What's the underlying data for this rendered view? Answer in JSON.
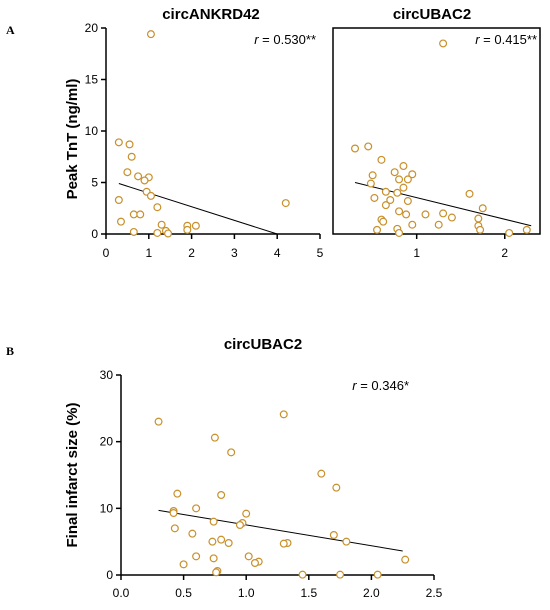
{
  "panels": {
    "a_label": "A",
    "b_label": "B"
  },
  "colors": {
    "marker_edge": "#c8902c",
    "marker_fill": "#ffffff",
    "axis": "#000000",
    "regression_line": "#000000"
  },
  "chart_data": [
    {
      "type": "scatter",
      "panel": "A",
      "title": "circANKRD42",
      "ylabel": "Peak TnT (ng/ml)",
      "xlabel": "",
      "xlim": [
        0,
        5
      ],
      "ylim": [
        0,
        20
      ],
      "xticks": [
        "0",
        "1",
        "2",
        "3",
        "4",
        "5"
      ],
      "yticks": [
        "0",
        "5",
        "10",
        "15",
        "20"
      ],
      "r_label": "r",
      "r_value": " = 0.530**",
      "regression": {
        "x": [
          0.3,
          4.0
        ],
        "y": [
          4.9,
          0.0
        ]
      },
      "points": [
        {
          "x": 1.05,
          "y": 19.4
        },
        {
          "x": 0.3,
          "y": 8.9
        },
        {
          "x": 0.55,
          "y": 8.7
        },
        {
          "x": 0.6,
          "y": 7.5
        },
        {
          "x": 0.5,
          "y": 6.0
        },
        {
          "x": 0.75,
          "y": 5.6
        },
        {
          "x": 1.0,
          "y": 5.5
        },
        {
          "x": 0.9,
          "y": 5.2
        },
        {
          "x": 0.3,
          "y": 3.3
        },
        {
          "x": 0.95,
          "y": 4.1
        },
        {
          "x": 1.05,
          "y": 3.7
        },
        {
          "x": 1.2,
          "y": 2.6
        },
        {
          "x": 0.65,
          "y": 1.9
        },
        {
          "x": 0.8,
          "y": 1.9
        },
        {
          "x": 0.35,
          "y": 1.2
        },
        {
          "x": 1.3,
          "y": 0.9
        },
        {
          "x": 1.9,
          "y": 0.8
        },
        {
          "x": 2.1,
          "y": 0.8
        },
        {
          "x": 1.4,
          "y": 0.3
        },
        {
          "x": 0.65,
          "y": 0.2
        },
        {
          "x": 1.9,
          "y": 0.4
        },
        {
          "x": 1.2,
          "y": 0.1
        },
        {
          "x": 1.45,
          "y": 0.05
        },
        {
          "x": 4.2,
          "y": 3.0
        }
      ]
    },
    {
      "type": "scatter",
      "panel": "A",
      "title": "circUBAC2",
      "xlabel": "",
      "ylabel": "",
      "xlim": [
        0.05,
        2.4
      ],
      "ylim": [
        0,
        20
      ],
      "xticks": [
        "1",
        "2"
      ],
      "xtick_values": [
        1,
        2
      ],
      "r_label": "r",
      "r_value": " = 0.415**",
      "regression": {
        "x": [
          0.3,
          2.3
        ],
        "y": [
          5.0,
          0.8
        ]
      },
      "points": [
        {
          "x": 1.3,
          "y": 18.5
        },
        {
          "x": 0.3,
          "y": 8.3
        },
        {
          "x": 0.45,
          "y": 8.5
        },
        {
          "x": 0.6,
          "y": 7.2
        },
        {
          "x": 0.85,
          "y": 6.6
        },
        {
          "x": 0.75,
          "y": 6.0
        },
        {
          "x": 0.95,
          "y": 5.8
        },
        {
          "x": 0.5,
          "y": 5.7
        },
        {
          "x": 0.8,
          "y": 5.3
        },
        {
          "x": 0.9,
          "y": 5.3
        },
        {
          "x": 0.48,
          "y": 4.9
        },
        {
          "x": 0.65,
          "y": 4.1
        },
        {
          "x": 0.78,
          "y": 4.0
        },
        {
          "x": 0.85,
          "y": 4.5
        },
        {
          "x": 1.6,
          "y": 3.9
        },
        {
          "x": 0.52,
          "y": 3.5
        },
        {
          "x": 0.7,
          "y": 3.3
        },
        {
          "x": 0.9,
          "y": 3.2
        },
        {
          "x": 0.65,
          "y": 2.8
        },
        {
          "x": 1.75,
          "y": 2.5
        },
        {
          "x": 0.8,
          "y": 2.2
        },
        {
          "x": 0.88,
          "y": 1.9
        },
        {
          "x": 1.1,
          "y": 1.9
        },
        {
          "x": 1.3,
          "y": 2.0
        },
        {
          "x": 1.4,
          "y": 1.6
        },
        {
          "x": 1.7,
          "y": 1.5
        },
        {
          "x": 0.6,
          "y": 1.4
        },
        {
          "x": 0.62,
          "y": 1.2
        },
        {
          "x": 0.95,
          "y": 0.9
        },
        {
          "x": 1.25,
          "y": 0.9
        },
        {
          "x": 1.7,
          "y": 0.8
        },
        {
          "x": 0.55,
          "y": 0.4
        },
        {
          "x": 0.78,
          "y": 0.5
        },
        {
          "x": 1.72,
          "y": 0.4
        },
        {
          "x": 2.25,
          "y": 0.4
        },
        {
          "x": 0.8,
          "y": 0.1
        },
        {
          "x": 2.05,
          "y": 0.1
        }
      ]
    },
    {
      "type": "scatter",
      "panel": "B",
      "title": "circUBAC2",
      "ylabel": "Final infarct size (%)",
      "xlabel": "",
      "xlim": [
        0,
        2.5
      ],
      "ylim": [
        0,
        30
      ],
      "xticks": [
        "0.0",
        "0.5",
        "1.0",
        "1.5",
        "2.0",
        "2.5"
      ],
      "yticks": [
        "0",
        "10",
        "20",
        "30"
      ],
      "r_label": "r",
      "r_value": " = 0.346*",
      "regression": {
        "x": [
          0.3,
          2.25
        ],
        "y": [
          9.7,
          3.6
        ]
      },
      "points": [
        {
          "x": 1.3,
          "y": 24.1
        },
        {
          "x": 0.3,
          "y": 23.0
        },
        {
          "x": 0.75,
          "y": 20.6
        },
        {
          "x": 0.88,
          "y": 18.4
        },
        {
          "x": 1.6,
          "y": 15.2
        },
        {
          "x": 1.72,
          "y": 13.1
        },
        {
          "x": 0.45,
          "y": 12.2
        },
        {
          "x": 0.8,
          "y": 12.0
        },
        {
          "x": 0.6,
          "y": 10.0
        },
        {
          "x": 0.42,
          "y": 9.6
        },
        {
          "x": 0.42,
          "y": 9.3
        },
        {
          "x": 1.0,
          "y": 9.2
        },
        {
          "x": 0.74,
          "y": 8.0
        },
        {
          "x": 0.97,
          "y": 7.8
        },
        {
          "x": 0.95,
          "y": 7.5
        },
        {
          "x": 0.43,
          "y": 7.0
        },
        {
          "x": 1.7,
          "y": 6.0
        },
        {
          "x": 0.57,
          "y": 6.2
        },
        {
          "x": 0.8,
          "y": 5.3
        },
        {
          "x": 0.73,
          "y": 5.0
        },
        {
          "x": 1.8,
          "y": 5.0
        },
        {
          "x": 0.86,
          "y": 4.8
        },
        {
          "x": 1.33,
          "y": 4.8
        },
        {
          "x": 1.3,
          "y": 4.7
        },
        {
          "x": 0.6,
          "y": 2.8
        },
        {
          "x": 1.02,
          "y": 2.8
        },
        {
          "x": 0.74,
          "y": 2.5
        },
        {
          "x": 2.27,
          "y": 2.3
        },
        {
          "x": 1.1,
          "y": 2.0
        },
        {
          "x": 1.07,
          "y": 1.8
        },
        {
          "x": 0.5,
          "y": 1.6
        },
        {
          "x": 0.77,
          "y": 0.6
        },
        {
          "x": 0.76,
          "y": 0.4
        },
        {
          "x": 1.45,
          "y": 0.05
        },
        {
          "x": 1.75,
          "y": 0.05
        },
        {
          "x": 2.05,
          "y": 0.05
        }
      ]
    }
  ]
}
